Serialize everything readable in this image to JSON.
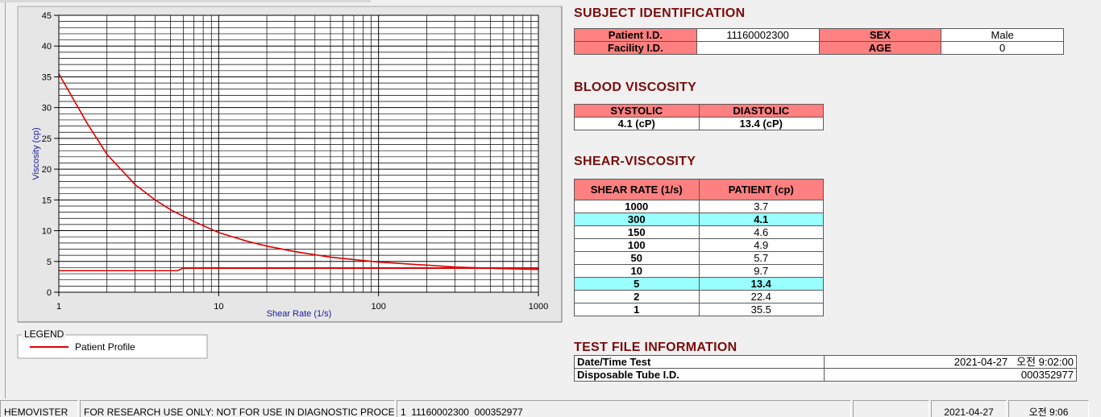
{
  "chart_data": {
    "type": "line",
    "xlabel": "Shear Rate (1/s)",
    "ylabel": "Viscosity (cp)",
    "xscale": "log",
    "xlim": [
      1,
      1000
    ],
    "xticks": [
      1,
      10,
      100,
      1000
    ],
    "x_minor_ticks": [
      2,
      3,
      4,
      5,
      6,
      7,
      8,
      9,
      20,
      30,
      40,
      50,
      60,
      70,
      80,
      90,
      200,
      300,
      400,
      500,
      600,
      700,
      800,
      900
    ],
    "ylim": [
      0,
      45
    ],
    "yticks": [
      0,
      5,
      10,
      15,
      20,
      25,
      30,
      35,
      40,
      45
    ],
    "y_minor_ticks": [
      1,
      2,
      3,
      4,
      6,
      7,
      8,
      9,
      11,
      12,
      13,
      14,
      16,
      17,
      18,
      19,
      21,
      22,
      23,
      24,
      26,
      27,
      28,
      29,
      31,
      32,
      33,
      34,
      36,
      37,
      38,
      39,
      41,
      42,
      43,
      44
    ],
    "grid": true,
    "legend_title": "LEGEND",
    "series": [
      {
        "name": "Patient Profile",
        "color": "#e00000",
        "x": [
          1,
          1.5,
          2,
          3,
          4,
          5,
          7,
          10,
          15,
          20,
          30,
          50,
          70,
          100,
          150,
          200,
          300,
          500,
          700,
          1000
        ],
        "values": [
          35.5,
          27.5,
          22.4,
          17.5,
          15,
          13.4,
          11.5,
          9.7,
          8.3,
          7.5,
          6.6,
          5.7,
          5.3,
          4.9,
          4.6,
          4.4,
          4.1,
          3.9,
          3.8,
          3.7
        ]
      },
      {
        "color": "#e00000",
        "x": [
          1,
          5.5,
          6,
          1000
        ],
        "values": [
          3.5,
          3.5,
          3.9,
          3.9
        ]
      }
    ]
  },
  "subject_identification": {
    "title": "SUBJECT IDENTIFICATION",
    "rows": [
      {
        "label": "Patient I.D.",
        "value": "11160002300",
        "label2": "SEX",
        "value2": "Male"
      },
      {
        "label": "Facility I.D.",
        "label2": "AGE",
        "value2": 0
      }
    ]
  },
  "blood_viscosity": {
    "title": "BLOOD VISCOSITY",
    "headers": [
      "SYSTOLIC",
      "DIASTOLIC"
    ],
    "values": [
      "4.1 (cP)",
      "13.4 (cP)"
    ]
  },
  "shear_viscosity": {
    "title": "SHEAR-VISCOSITY",
    "headers": [
      "SHEAR RATE (1/s)",
      "PATIENT (cp)"
    ],
    "highlight_color": "#99ffff",
    "rows": [
      {
        "shear_rate": 1000,
        "patient": 3.7
      },
      {
        "shear_rate": 300,
        "patient": 4.1,
        "highlight": true
      },
      {
        "shear_rate": 150,
        "patient": 4.6
      },
      {
        "shear_rate": 100,
        "patient": 4.9
      },
      {
        "shear_rate": 50,
        "patient": 5.7
      },
      {
        "shear_rate": 10,
        "patient": 9.7
      },
      {
        "shear_rate": 5,
        "patient": 13.4,
        "highlight": true
      },
      {
        "shear_rate": 2,
        "patient": 22.4
      },
      {
        "shear_rate": 1,
        "patient": 35.5
      }
    ]
  },
  "test_file_information": {
    "title": "TEST FILE INFORMATION",
    "rows": [
      {
        "label": "Date/Time Test",
        "value": "2021-04-27   오전 9:02:00"
      },
      {
        "label": "Disposable Tube I.D.",
        "value": "000352977"
      }
    ]
  },
  "status_bar": [
    "HEMOVISTER",
    "FOR RESEARCH USE ONLY: NOT FOR USE IN DIAGNOSTIC PROCEDURES",
    "1  11160002300  000352977",
    "2021-04-27",
    "오전 9:06"
  ]
}
